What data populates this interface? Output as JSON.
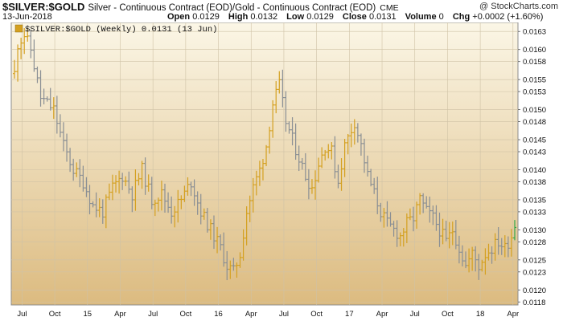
{
  "header": {
    "symbol": "$SILVER:$GOLD",
    "description": "Silver - Continuous Contract (EOD)/Gold - Continuous Contract (EOD)",
    "exchange": "CME",
    "date": "13-Jun-2018",
    "copyright": "@ StockCharts.com",
    "ohlc": [
      {
        "label": "Open",
        "value": "0.0129"
      },
      {
        "label": "High",
        "value": "0.0132"
      },
      {
        "label": "Low",
        "value": "0.0129"
      },
      {
        "label": "Close",
        "value": "0.0131"
      },
      {
        "label": "Volume",
        "value": "0"
      },
      {
        "label": "Chg",
        "value": "+0.0002 (+1.60%)"
      }
    ]
  },
  "colors": {
    "up": "#d4a020",
    "down": "#8a8f94",
    "last": "#2fa64a",
    "bg_top": "#fbf6e6",
    "bg_bottom": "#dcbb80"
  },
  "chart_data": {
    "type": "ohlc",
    "legend": "$SILVER:$GOLD (Weekly) 0.0131 (13 Jun)",
    "ylim": [
      0.01175,
      0.01645
    ],
    "yticks": [
      "0.0163",
      "0.0160",
      "0.0158",
      "0.0155",
      "0.0153",
      "0.0150",
      "0.0148",
      "0.0145",
      "0.0143",
      "0.0140",
      "0.0138",
      "0.0135",
      "0.0133",
      "0.0130",
      "0.0128",
      "0.0125",
      "0.0123",
      "0.0120",
      "0.0118"
    ],
    "xticks": [
      "Jul",
      "Oct",
      "15",
      "Apr",
      "Jul",
      "Oct",
      "16",
      "Apr",
      "Jul",
      "Oct",
      "17",
      "Apr",
      "Jul",
      "Oct",
      "18",
      "Apr"
    ],
    "x_range_weeks": 154,
    "key_points": [
      [
        0,
        0.0156
      ],
      [
        1,
        0.0161
      ],
      [
        3,
        0.01625
      ],
      [
        5,
        0.016
      ],
      [
        8,
        0.0152
      ],
      [
        12,
        0.015
      ],
      [
        15,
        0.0144
      ],
      [
        18,
        0.014
      ],
      [
        21,
        0.0138
      ],
      [
        24,
        0.0134
      ],
      [
        27,
        0.0133
      ],
      [
        30,
        0.0137
      ],
      [
        33,
        0.0139
      ],
      [
        36,
        0.0136
      ],
      [
        39,
        0.014
      ],
      [
        42,
        0.0135
      ],
      [
        45,
        0.0136
      ],
      [
        48,
        0.0133
      ],
      [
        51,
        0.0135
      ],
      [
        54,
        0.0138
      ],
      [
        57,
        0.0133
      ],
      [
        60,
        0.013
      ],
      [
        63,
        0.0127
      ],
      [
        65,
        0.0124
      ],
      [
        67,
        0.0123
      ],
      [
        69,
        0.0126
      ],
      [
        71,
        0.0133
      ],
      [
        73,
        0.0137
      ],
      [
        75,
        0.014
      ],
      [
        77,
        0.0144
      ],
      [
        79,
        0.0151
      ],
      [
        81,
        0.0154
      ],
      [
        83,
        0.0148
      ],
      [
        85,
        0.0145
      ],
      [
        87,
        0.0142
      ],
      [
        89,
        0.0139
      ],
      [
        91,
        0.0137
      ],
      [
        93,
        0.0141
      ],
      [
        95,
        0.0144
      ],
      [
        97,
        0.0143
      ],
      [
        99,
        0.0138
      ],
      [
        101,
        0.0144
      ],
      [
        104,
        0.0148
      ],
      [
        106,
        0.0144
      ],
      [
        108,
        0.0139
      ],
      [
        110,
        0.0136
      ],
      [
        112,
        0.0133
      ],
      [
        114,
        0.0131
      ],
      [
        116,
        0.013
      ],
      [
        118,
        0.0129
      ],
      [
        120,
        0.0131
      ],
      [
        122,
        0.0132
      ],
      [
        124,
        0.0135
      ],
      [
        126,
        0.0133
      ],
      [
        128,
        0.0132
      ],
      [
        130,
        0.013
      ],
      [
        132,
        0.0128
      ],
      [
        134,
        0.013
      ],
      [
        136,
        0.0127
      ],
      [
        138,
        0.0124
      ],
      [
        140,
        0.0126
      ],
      [
        142,
        0.0124
      ],
      [
        144,
        0.0126
      ],
      [
        146,
        0.0127
      ],
      [
        148,
        0.0128
      ],
      [
        150,
        0.0127
      ],
      [
        152,
        0.0129
      ],
      [
        153,
        0.0131
      ]
    ]
  }
}
